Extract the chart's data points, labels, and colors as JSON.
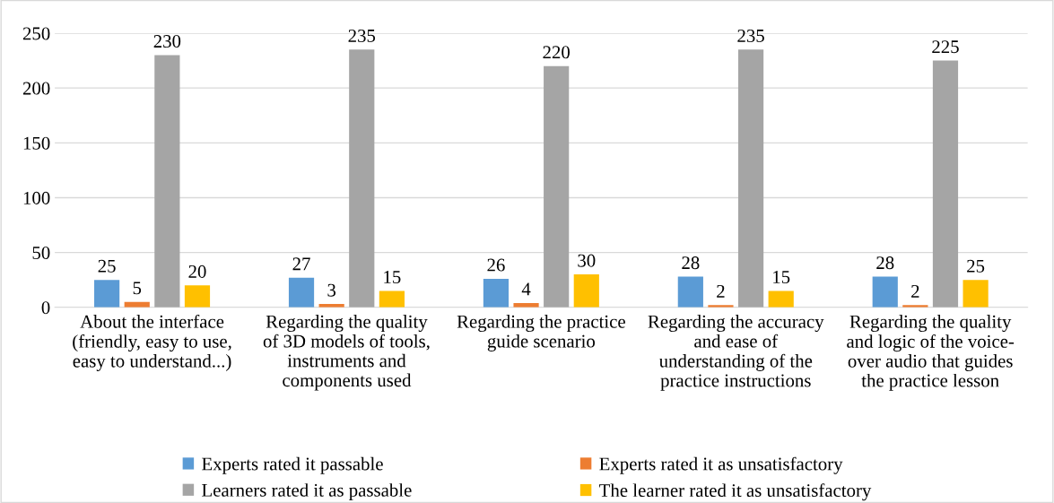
{
  "chart_data": {
    "type": "bar",
    "categories": [
      "About the interface\n(friendly, easy to use,\neasy to understand...)",
      "Regarding the quality\nof 3D models of tools,\ninstruments and\ncomponents used",
      "Regarding the practice\nguide scenario",
      "Regarding the accuracy\nand ease of\nunderstanding of the\npractice instructions",
      "Regarding the quality\nand logic of the voice-\nover audio that guides\nthe practice lesson"
    ],
    "series": [
      {
        "name": "Experts rated it passable",
        "color": "#5b9bd5",
        "values": [
          25,
          27,
          26,
          28,
          28
        ]
      },
      {
        "name": "Experts rated it as unsatisfactory",
        "color": "#ed7d31",
        "values": [
          5,
          3,
          4,
          2,
          2
        ]
      },
      {
        "name": "Learners rated it as passable",
        "color": "#a5a5a5",
        "values": [
          230,
          235,
          220,
          235,
          225
        ]
      },
      {
        "name": "The learner rated it as unsatisfactory",
        "color": "#ffc000",
        "values": [
          20,
          15,
          30,
          15,
          25
        ]
      }
    ],
    "ylim": [
      0,
      250
    ],
    "yticks": [
      0,
      50,
      100,
      150,
      200,
      250
    ],
    "grid": "y",
    "legend": "bottom",
    "data_labels": true
  }
}
